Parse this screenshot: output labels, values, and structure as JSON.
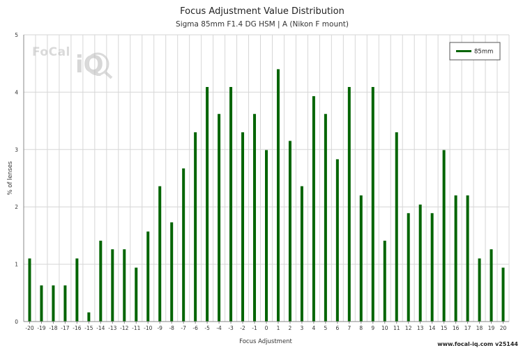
{
  "chart_data": {
    "type": "bar",
    "title": "Focus Adjustment Value Distribution",
    "subtitle": "Sigma 85mm F1.4 DG HSM | A (Nikon F mount)",
    "xlabel": "Focus Adjustment",
    "ylabel": "% of lenses",
    "ylim": [
      0,
      5
    ],
    "yticks": [
      "0",
      "1",
      "2",
      "3",
      "4",
      "5"
    ],
    "grid": true,
    "legend_position": "top-right",
    "categories": [
      "-20",
      "-19",
      "-18",
      "-17",
      "-16",
      "-15",
      "-14",
      "-13",
      "-12",
      "-11",
      "-10",
      "-9",
      "-8",
      "-7",
      "-6",
      "-5",
      "-4",
      "-3",
      "-2",
      "-1",
      "0",
      "1",
      "2",
      "3",
      "4",
      "5",
      "6",
      "7",
      "8",
      "9",
      "10",
      "11",
      "12",
      "13",
      "14",
      "15",
      "16",
      "17",
      "18",
      "19",
      "20"
    ],
    "series": [
      {
        "name": "85mm",
        "color": "#006400",
        "values": [
          1.1,
          0.63,
          0.63,
          0.63,
          1.1,
          0.16,
          1.41,
          1.26,
          1.26,
          0.94,
          1.57,
          2.36,
          1.73,
          2.67,
          3.3,
          4.09,
          3.62,
          4.09,
          3.3,
          3.62,
          2.99,
          4.4,
          3.15,
          2.36,
          3.93,
          3.62,
          2.83,
          4.09,
          2.2,
          4.09,
          1.41,
          3.3,
          1.89,
          2.04,
          1.89,
          2.99,
          2.2,
          2.2,
          1.1,
          1.26,
          0.94
        ]
      }
    ]
  },
  "logo": {
    "text": "FoCal",
    "mark": "iQ"
  },
  "footer": {
    "text": "www.focal-iq.com  v25144"
  }
}
